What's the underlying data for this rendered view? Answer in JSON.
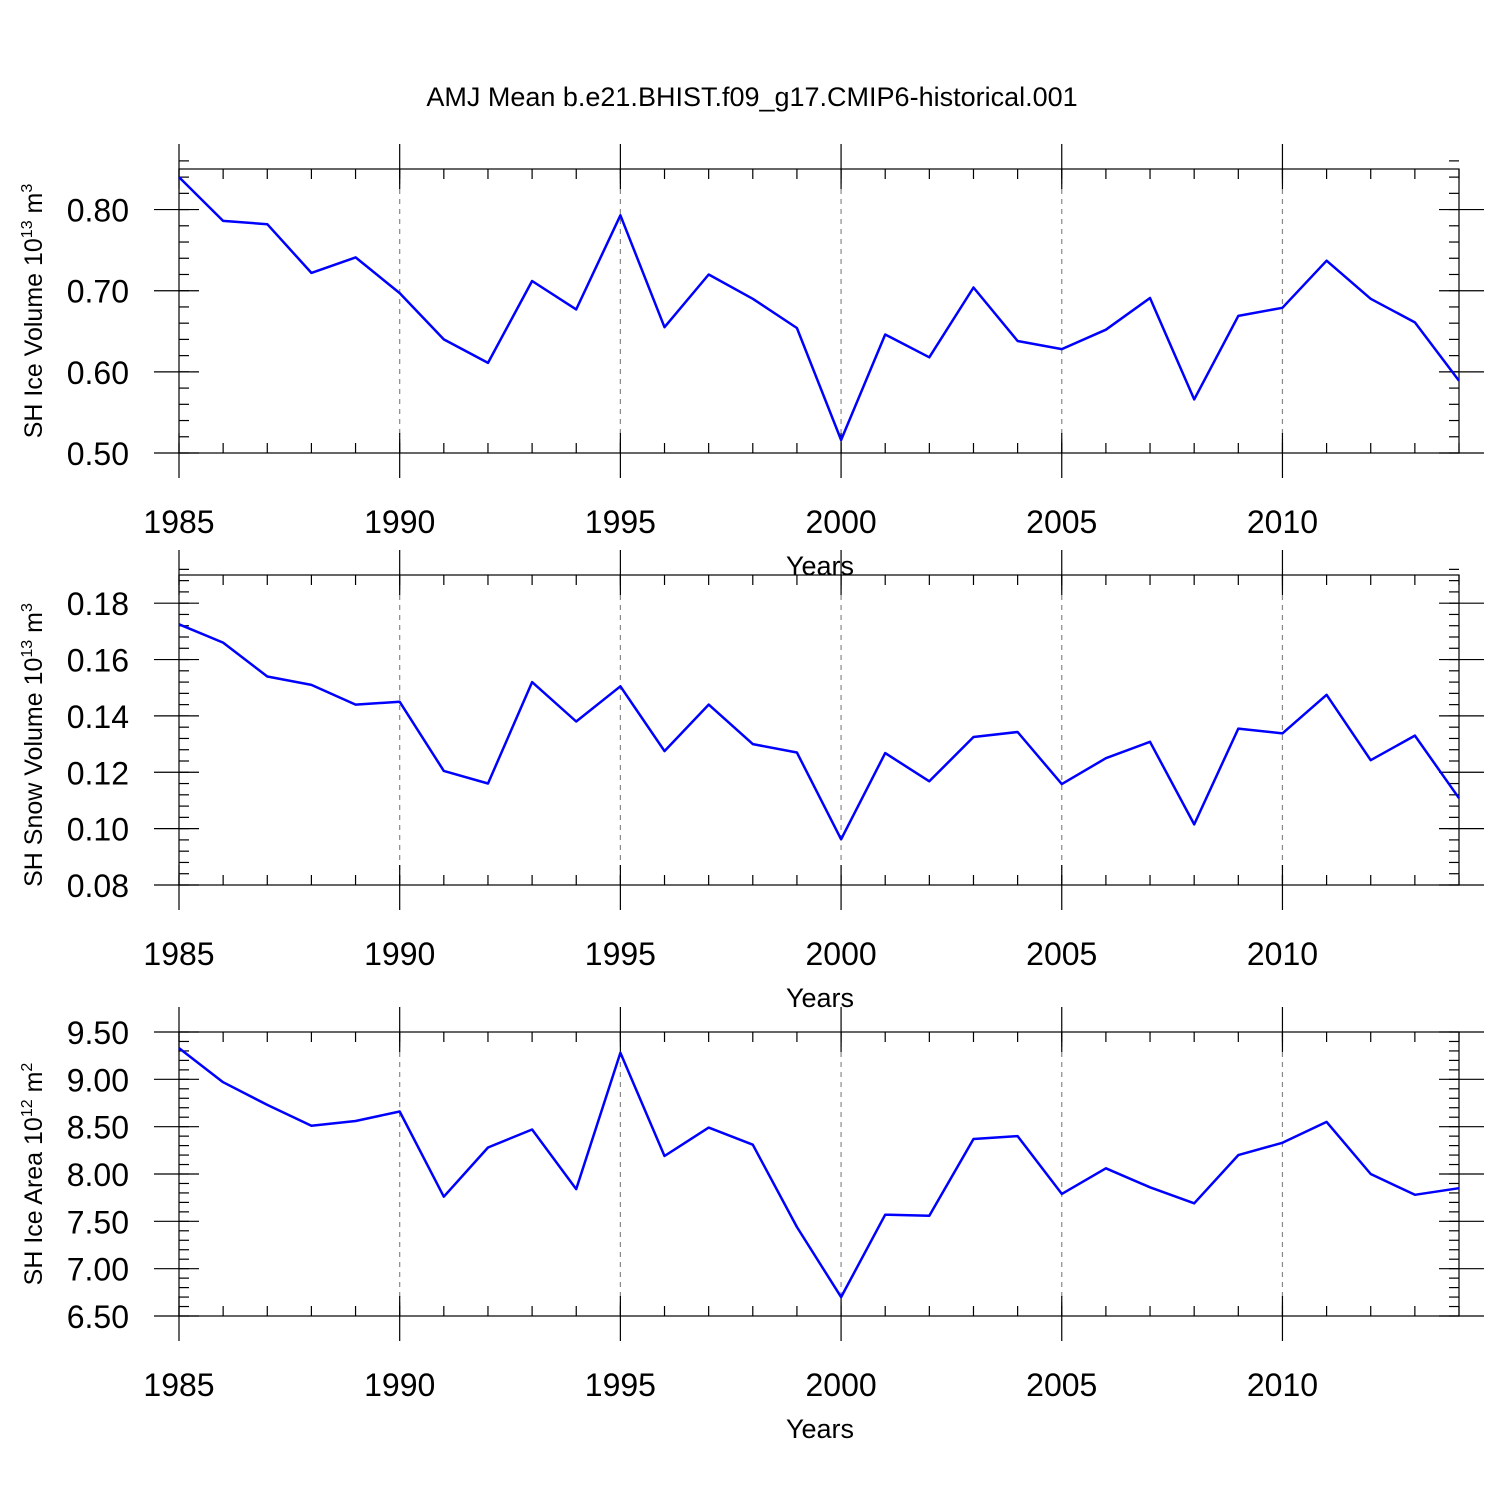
{
  "title": "AMJ Mean b.e21.BHIST.f09_g17.CMIP6-historical.001",
  "style": {
    "line_color": "#0000ff",
    "grid": "vertical dashed at major x ticks"
  },
  "chart_data": [
    {
      "type": "line",
      "xlabel": "Years",
      "ylabel": {
        "main": "SH Ice Volume 10",
        "exp": "13",
        "unit": " m",
        "unit_exp": "3"
      },
      "xlim": [
        1985,
        2014
      ],
      "ylim": [
        0.5,
        0.85
      ],
      "x_ticks": [
        1985,
        1990,
        1995,
        2000,
        2005,
        2010
      ],
      "x_tick_labels": [
        "1985",
        "1990",
        "1995",
        "2000",
        "2005",
        "2010"
      ],
      "y_ticks": [
        0.5,
        0.6,
        0.7,
        0.8
      ],
      "y_tick_labels": [
        "0.50",
        "0.60",
        "0.70",
        "0.80"
      ],
      "y_minor_step": 0.02,
      "x": [
        1985,
        1986,
        1987,
        1988,
        1989,
        1990,
        1991,
        1992,
        1993,
        1994,
        1995,
        1996,
        1997,
        1998,
        1999,
        2000,
        2001,
        2002,
        2003,
        2004,
        2005,
        2006,
        2007,
        2008,
        2009,
        2010,
        2011,
        2012,
        2013,
        2014
      ],
      "values": [
        0.84,
        0.786,
        0.782,
        0.722,
        0.741,
        0.697,
        0.64,
        0.611,
        0.712,
        0.677,
        0.793,
        0.655,
        0.72,
        0.69,
        0.654,
        0.516,
        0.646,
        0.618,
        0.704,
        0.638,
        0.628,
        0.652,
        0.691,
        0.566,
        0.669,
        0.679,
        0.737,
        0.69,
        0.661,
        0.589
      ]
    },
    {
      "type": "line",
      "xlabel": "Years",
      "ylabel": {
        "main": "SH Snow Volume 10",
        "exp": "13",
        "unit": " m",
        "unit_exp": "3"
      },
      "xlim": [
        1985,
        2014
      ],
      "ylim": [
        0.08,
        0.19
      ],
      "x_ticks": [
        1985,
        1990,
        1995,
        2000,
        2005,
        2010
      ],
      "x_tick_labels": [
        "1985",
        "1990",
        "1995",
        "2000",
        "2005",
        "2010"
      ],
      "y_ticks": [
        0.08,
        0.1,
        0.12,
        0.14,
        0.16,
        0.18
      ],
      "y_tick_labels": [
        "0.08",
        "0.10",
        "0.12",
        "0.14",
        "0.16",
        "0.18"
      ],
      "y_minor_step": 0.004,
      "x": [
        1985,
        1986,
        1987,
        1988,
        1989,
        1990,
        1991,
        1992,
        1993,
        1994,
        1995,
        1996,
        1997,
        1998,
        1999,
        2000,
        2001,
        2002,
        2003,
        2004,
        2005,
        2006,
        2007,
        2008,
        2009,
        2010,
        2011,
        2012,
        2013,
        2014
      ],
      "values": [
        0.1725,
        0.166,
        0.154,
        0.151,
        0.144,
        0.145,
        0.1205,
        0.116,
        0.152,
        0.138,
        0.1505,
        0.1275,
        0.144,
        0.13,
        0.127,
        0.0962,
        0.1268,
        0.1168,
        0.1325,
        0.1343,
        0.1158,
        0.125,
        0.1308,
        0.1015,
        0.1355,
        0.1338,
        0.1475,
        0.1243,
        0.133,
        0.1108
      ]
    },
    {
      "type": "line",
      "xlabel": "Years",
      "ylabel": {
        "main": "SH Ice Area 10",
        "exp": "12",
        "unit": " m",
        "unit_exp": "2"
      },
      "xlim": [
        1985,
        2014
      ],
      "ylim": [
        6.5,
        9.5
      ],
      "x_ticks": [
        1985,
        1990,
        1995,
        2000,
        2005,
        2010
      ],
      "x_tick_labels": [
        "1985",
        "1990",
        "1995",
        "2000",
        "2005",
        "2010"
      ],
      "y_ticks": [
        6.5,
        7.0,
        7.5,
        8.0,
        8.5,
        9.0,
        9.5
      ],
      "y_tick_labels": [
        "6.50",
        "7.00",
        "7.50",
        "8.00",
        "8.50",
        "9.00",
        "9.50"
      ],
      "y_minor_step": 0.1,
      "x": [
        1985,
        1986,
        1987,
        1988,
        1989,
        1990,
        1991,
        1992,
        1993,
        1994,
        1995,
        1996,
        1997,
        1998,
        1999,
        2000,
        2001,
        2002,
        2003,
        2004,
        2005,
        2006,
        2007,
        2008,
        2009,
        2010,
        2011,
        2012,
        2013,
        2014
      ],
      "values": [
        9.33,
        8.97,
        8.73,
        8.51,
        8.56,
        8.66,
        7.76,
        8.28,
        8.47,
        7.84,
        9.28,
        8.19,
        8.49,
        8.31,
        7.44,
        6.7,
        7.57,
        7.56,
        8.37,
        8.4,
        7.79,
        8.06,
        7.86,
        7.69,
        8.2,
        8.33,
        8.55,
        8.0,
        7.78,
        7.85
      ]
    }
  ]
}
